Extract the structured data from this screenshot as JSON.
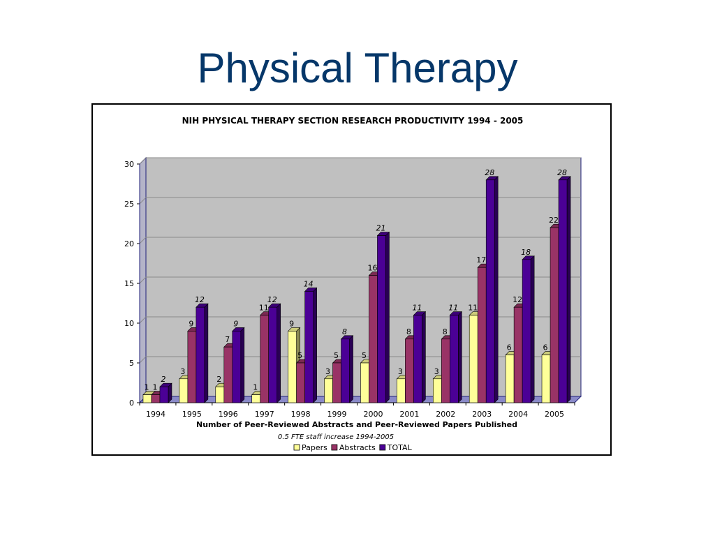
{
  "slide": {
    "title": "Physical Therapy"
  },
  "chart_data": {
    "type": "bar",
    "style": "3d-clustered",
    "title": "NIH PHYSICAL THERAPY SECTION RESEARCH PRODUCTIVITY 1994 - 2005",
    "xlabel": "Number of Peer-Reviewed Abstracts and Peer-Reviewed Papers Published",
    "subtitle_note": "0.5 FTE staff increase 1994-2005",
    "ylabel": "",
    "ylim": [
      0,
      30
    ],
    "yticks": [
      0,
      5,
      10,
      15,
      20,
      25,
      30
    ],
    "grid": true,
    "legend_position": "bottom",
    "plot_background": "#c0c0c0",
    "categories": [
      "1994",
      "1995",
      "1996",
      "1997",
      "1998",
      "1999",
      "2000",
      "2001",
      "2002",
      "2003",
      "2004",
      "2005"
    ],
    "series": [
      {
        "name": "Papers",
        "color": "#ffff99",
        "label_style": "normal",
        "values": [
          1,
          3,
          2,
          1,
          9,
          3,
          5,
          3,
          3,
          11,
          6,
          6
        ]
      },
      {
        "name": "Abstracts",
        "color": "#993366",
        "label_style": "normal",
        "values": [
          1,
          9,
          7,
          11,
          5,
          5,
          16,
          8,
          8,
          17,
          12,
          22
        ]
      },
      {
        "name": "TOTAL",
        "color": "#4b0096",
        "label_style": "italic",
        "values": [
          2,
          12,
          9,
          12,
          14,
          8,
          21,
          11,
          11,
          28,
          18,
          28
        ]
      }
    ]
  }
}
